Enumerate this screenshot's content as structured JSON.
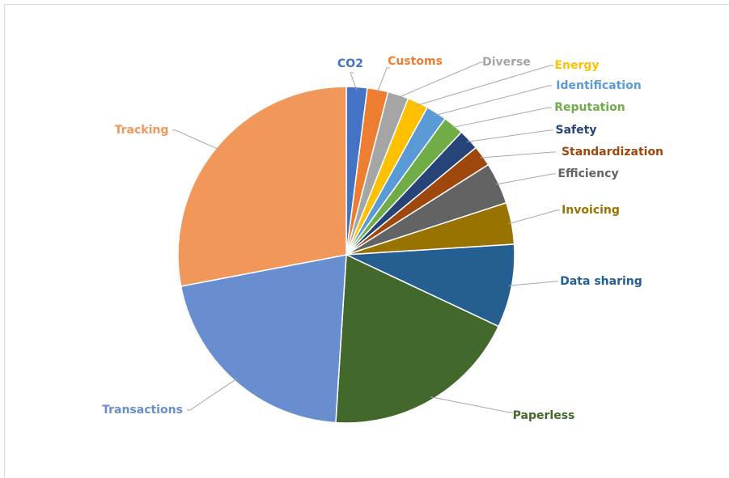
{
  "chart_data": {
    "type": "pie",
    "categories": [
      "CO2",
      "Customs",
      "Diverse",
      "Energy",
      "Identification",
      "Reputation",
      "Safety",
      "Standardization",
      "Efficiency",
      "Invoicing",
      "Data sharing",
      "Paperless",
      "Transactions",
      "Tracking"
    ],
    "values": [
      2,
      2,
      2,
      2,
      2,
      2,
      2,
      2,
      4,
      4,
      8,
      19,
      21,
      28
    ],
    "colors": [
      "#4472c4",
      "#ed7d31",
      "#a5a5a5",
      "#ffc000",
      "#5b9bd5",
      "#70ad47",
      "#264478",
      "#9e480e",
      "#636363",
      "#997300",
      "#255e91",
      "#43682b",
      "#698ed0",
      "#f1975a"
    ]
  }
}
